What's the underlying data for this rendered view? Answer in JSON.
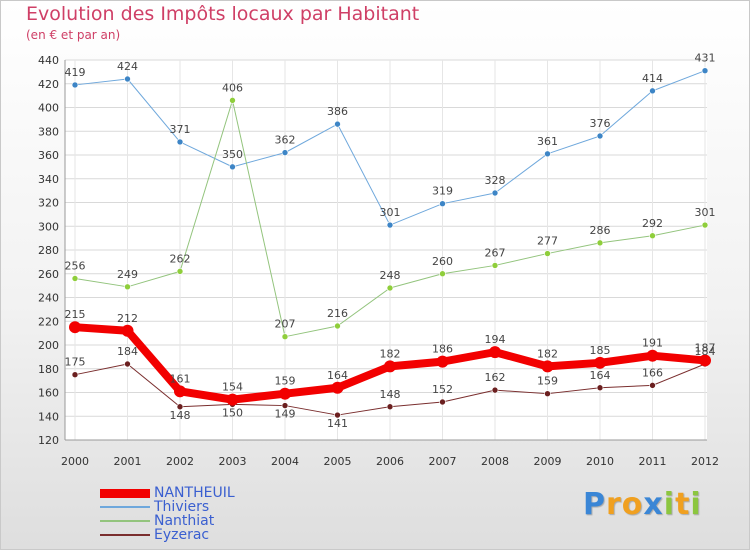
{
  "title": "Evolution des Impôts locaux par Habitant",
  "subtitle": "(en € et par an)",
  "logo": {
    "text": "Proxiti",
    "letters": [
      "P",
      "r",
      "o",
      "x",
      "i",
      "t",
      "i"
    ],
    "colors": [
      "#3a86d6",
      "#f0a020",
      "#f0a020",
      "#3a86d6",
      "#8cc63f",
      "#f0a020",
      "#8cc63f"
    ]
  },
  "chart_data": {
    "type": "line",
    "x": [
      "2000",
      "2001",
      "2002",
      "2003",
      "2004",
      "2005",
      "2006",
      "2007",
      "2008",
      "2009",
      "2010",
      "2011",
      "2012"
    ],
    "ylim": [
      120,
      440
    ],
    "yticks": [
      "120",
      "140",
      "160",
      "180",
      "200",
      "220",
      "240",
      "260",
      "280",
      "300",
      "320",
      "340",
      "360",
      "380",
      "400",
      "420",
      "440"
    ],
    "grid": true,
    "legend_position": "bottom-left",
    "series": [
      {
        "name": "Thiviers",
        "color": "#6fa8dc",
        "width": 1,
        "marker": "#3d85c6",
        "values": [
          419,
          424,
          371,
          350,
          362,
          386,
          301,
          319,
          328,
          361,
          376,
          414,
          431
        ],
        "labels": [
          "419",
          "424",
          "371",
          "350",
          "362",
          "386",
          "301",
          "319",
          "328",
          "361",
          "376",
          "414",
          "431"
        ]
      },
      {
        "name": "Nanthiat",
        "color": "#93c47d",
        "width": 1,
        "marker": "#8fce3b",
        "values": [
          256,
          249,
          262,
          406,
          207,
          216,
          248,
          260,
          267,
          277,
          286,
          292,
          301
        ],
        "labels": [
          "256",
          "249",
          "262",
          "406",
          "207",
          "216",
          "248",
          "260",
          "267",
          "277",
          "286",
          "292",
          "301"
        ]
      },
      {
        "name": "Eyzerac",
        "color": "#7a2e2e",
        "width": 1,
        "marker": "#6b1f1f",
        "values": [
          175,
          184,
          148,
          150,
          149,
          141,
          148,
          152,
          162,
          159,
          164,
          166,
          184
        ],
        "labels": [
          "175",
          "184",
          "148",
          "150",
          "149",
          "141",
          "148",
          "152",
          "162",
          "159",
          "164",
          "166",
          "184"
        ]
      },
      {
        "name": "NANTHEUIL",
        "color": "#f20000",
        "width": 8,
        "marker": "#f20000",
        "values": [
          215,
          212,
          161,
          154,
          159,
          164,
          182,
          186,
          194,
          182,
          185,
          191,
          187
        ],
        "labels": [
          "215",
          "212",
          "161",
          "154",
          "159",
          "164",
          "182",
          "186",
          "194",
          "182",
          "185",
          "191",
          "187"
        ]
      }
    ],
    "legend_order": [
      "NANTHEUIL",
      "Thiviers",
      "Nanthiat",
      "Eyzerac"
    ]
  }
}
